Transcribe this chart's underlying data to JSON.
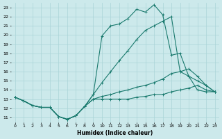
{
  "xlabel": "Humidex (Indice chaleur)",
  "bg_color": "#cce9eb",
  "grid_color": "#aad4d7",
  "line_color": "#1a7a6e",
  "xlim": [
    -0.5,
    23.5
  ],
  "ylim": [
    10.5,
    23.5
  ],
  "xticks": [
    0,
    1,
    2,
    3,
    4,
    5,
    6,
    7,
    8,
    9,
    10,
    11,
    12,
    13,
    14,
    15,
    16,
    17,
    18,
    19,
    20,
    21,
    22,
    23
  ],
  "yticks": [
    11,
    12,
    13,
    14,
    15,
    16,
    17,
    18,
    19,
    20,
    21,
    22,
    23
  ],
  "series_top_x": [
    0,
    1,
    2,
    3,
    4,
    5,
    6,
    7,
    8,
    9,
    10,
    11,
    12,
    13,
    14,
    15,
    16,
    17,
    18,
    19,
    20,
    21,
    22,
    23
  ],
  "series_top_y": [
    13.2,
    12.8,
    12.3,
    12.1,
    12.1,
    11.1,
    10.8,
    11.2,
    12.2,
    13.5,
    19.9,
    21.0,
    21.2,
    21.8,
    22.8,
    22.5,
    23.3,
    22.2,
    17.8,
    18.0,
    15.5,
    14.0,
    13.8,
    13.8
  ],
  "series_mid1_x": [
    0,
    1,
    2,
    3,
    4,
    5,
    6,
    7,
    8,
    9,
    10,
    11,
    12,
    13,
    14,
    15,
    16,
    17,
    18,
    19,
    20,
    21,
    22,
    23
  ],
  "series_mid1_y": [
    13.2,
    12.8,
    12.3,
    12.1,
    12.1,
    11.1,
    10.8,
    11.2,
    12.2,
    13.5,
    14.8,
    16.0,
    17.2,
    18.3,
    19.5,
    20.5,
    21.0,
    21.5,
    22.0,
    16.0,
    15.5,
    15.0,
    14.5,
    13.8
  ],
  "series_mid2_x": [
    0,
    1,
    2,
    3,
    4,
    5,
    6,
    7,
    8,
    9,
    10,
    11,
    12,
    13,
    14,
    15,
    16,
    17,
    18,
    19,
    20,
    21,
    22,
    23
  ],
  "series_mid2_y": [
    13.2,
    12.8,
    12.3,
    12.1,
    12.1,
    11.1,
    10.8,
    11.2,
    12.2,
    13.0,
    13.3,
    13.5,
    13.8,
    14.0,
    14.3,
    14.5,
    14.8,
    15.2,
    15.8,
    16.0,
    16.3,
    15.5,
    14.5,
    13.8
  ],
  "series_bot_x": [
    0,
    1,
    2,
    3,
    4,
    5,
    6,
    7,
    8,
    9,
    10,
    11,
    12,
    13,
    14,
    15,
    16,
    17,
    18,
    19,
    20,
    21,
    22,
    23
  ],
  "series_bot_y": [
    13.2,
    12.8,
    12.3,
    12.1,
    12.1,
    11.1,
    10.8,
    11.2,
    12.2,
    13.0,
    13.0,
    13.0,
    13.0,
    13.0,
    13.2,
    13.3,
    13.5,
    13.5,
    13.8,
    14.0,
    14.2,
    14.5,
    14.0,
    13.8
  ]
}
